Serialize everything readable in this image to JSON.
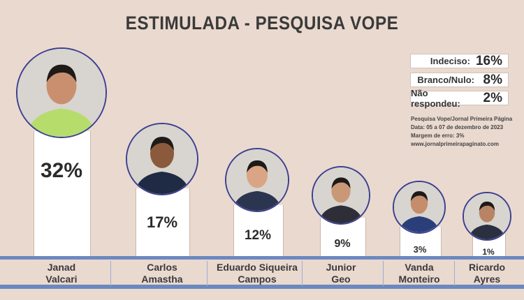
{
  "chart_data": {
    "type": "bar",
    "title": "ESTIMULADA - PESQUISA VOPE",
    "categories": [
      "Janad Valcari",
      "Carlos Amastha",
      "Eduardo Siqueira Campos",
      "Junior Geo",
      "Vanda Monteiro",
      "Ricardo Ayres"
    ],
    "name_lines": [
      [
        "Janad",
        "Valcari"
      ],
      [
        "Carlos",
        "Amastha"
      ],
      [
        "Eduardo Siqueira",
        "Campos"
      ],
      [
        "Junior",
        "Geo"
      ],
      [
        "Vanda",
        "Monteiro"
      ],
      [
        "Ricardo",
        "Ayres"
      ]
    ],
    "values": [
      32,
      17,
      12,
      9,
      3,
      1
    ],
    "value_labels": [
      "32%",
      "17%",
      "12%",
      "9%",
      "3%",
      "1%"
    ],
    "unit": "%"
  },
  "others": [
    {
      "label": "Indeciso:",
      "value": "16%"
    },
    {
      "label": "Branco/Nulo:",
      "value": "8%"
    },
    {
      "label": "Não respondeu:",
      "value": "2%"
    }
  ],
  "source": {
    "line1": "Pesquisa Vope/Jornal Primeira Página",
    "line2": "Data: 05 a 07 de dezembro de 2023",
    "line3": "Margem de erro: 3%",
    "line4": "www.jornalprimeirapaginato.com"
  },
  "colors": {
    "background": "#ead9cf",
    "accent": "#6c88c0",
    "border": "#3b3f8f"
  }
}
